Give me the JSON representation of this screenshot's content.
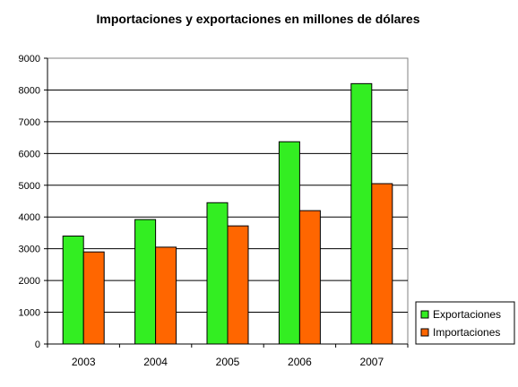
{
  "chart_data": {
    "type": "bar",
    "title": "Importaciones y exportaciones en millones de dólares",
    "xlabel": "",
    "ylabel": "",
    "categories": [
      "2003",
      "2004",
      "2005",
      "2006",
      "2007"
    ],
    "ylim": [
      0,
      9000
    ],
    "yticks": [
      0,
      1000,
      2000,
      3000,
      4000,
      5000,
      6000,
      7000,
      8000,
      9000
    ],
    "grid": true,
    "legend_position": "right-bottom",
    "series": [
      {
        "name": "Exportaciones",
        "color": "#33ee22",
        "values": [
          3400,
          3920,
          4450,
          6370,
          8200
        ]
      },
      {
        "name": "Importaciones",
        "color": "#ff6600",
        "values": [
          2900,
          3050,
          3720,
          4200,
          5050
        ]
      }
    ]
  }
}
